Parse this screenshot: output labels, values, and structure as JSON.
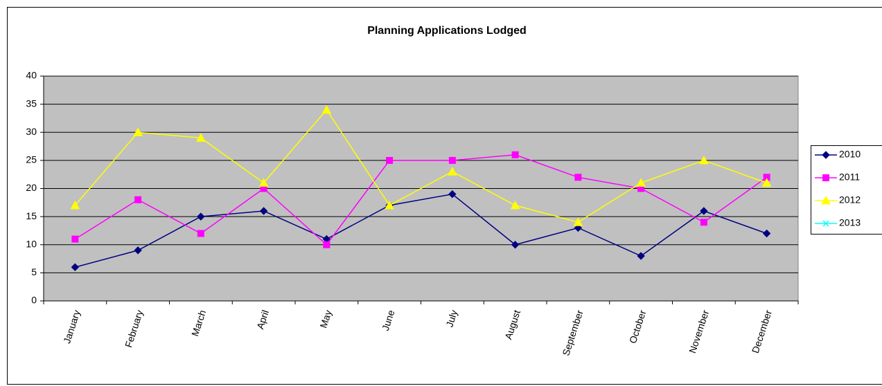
{
  "chart_data": {
    "type": "line",
    "title": "Planning Applications Lodged",
    "categories": [
      "January",
      "February",
      "March",
      "April",
      "May",
      "June",
      "July",
      "August",
      "September",
      "October",
      "November",
      "December"
    ],
    "series": [
      {
        "name": "2010",
        "color": "#000080",
        "marker": "diamond",
        "values": [
          6,
          9,
          15,
          16,
          11,
          17,
          19,
          10,
          13,
          8,
          16,
          12
        ]
      },
      {
        "name": "2011",
        "color": "#ff00ff",
        "marker": "square",
        "values": [
          11,
          18,
          12,
          20,
          10,
          25,
          25,
          26,
          22,
          20,
          14,
          22
        ]
      },
      {
        "name": "2012",
        "color": "#ffff00",
        "marker": "triangle",
        "values": [
          17,
          30,
          29,
          21,
          34,
          17,
          23,
          17,
          14,
          21,
          25,
          21
        ]
      },
      {
        "name": "2013",
        "color": "#00ffff",
        "marker": "x",
        "values": [
          null,
          null,
          null,
          null,
          null,
          null,
          null,
          null,
          null,
          null,
          null,
          null
        ]
      }
    ],
    "ylim": [
      0,
      40
    ],
    "yticks": [
      0,
      5,
      10,
      15,
      20,
      25,
      30,
      35,
      40
    ],
    "grid": true,
    "legend": "right"
  }
}
